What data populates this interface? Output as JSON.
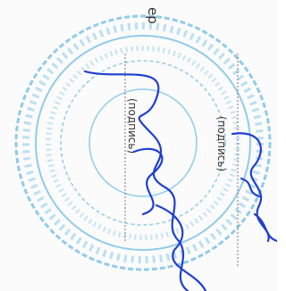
{
  "header": {
    "fragment": "ер"
  },
  "signatures": [
    {
      "caption": "(подпись)"
    },
    {
      "caption": "(подпись)"
    }
  ]
}
